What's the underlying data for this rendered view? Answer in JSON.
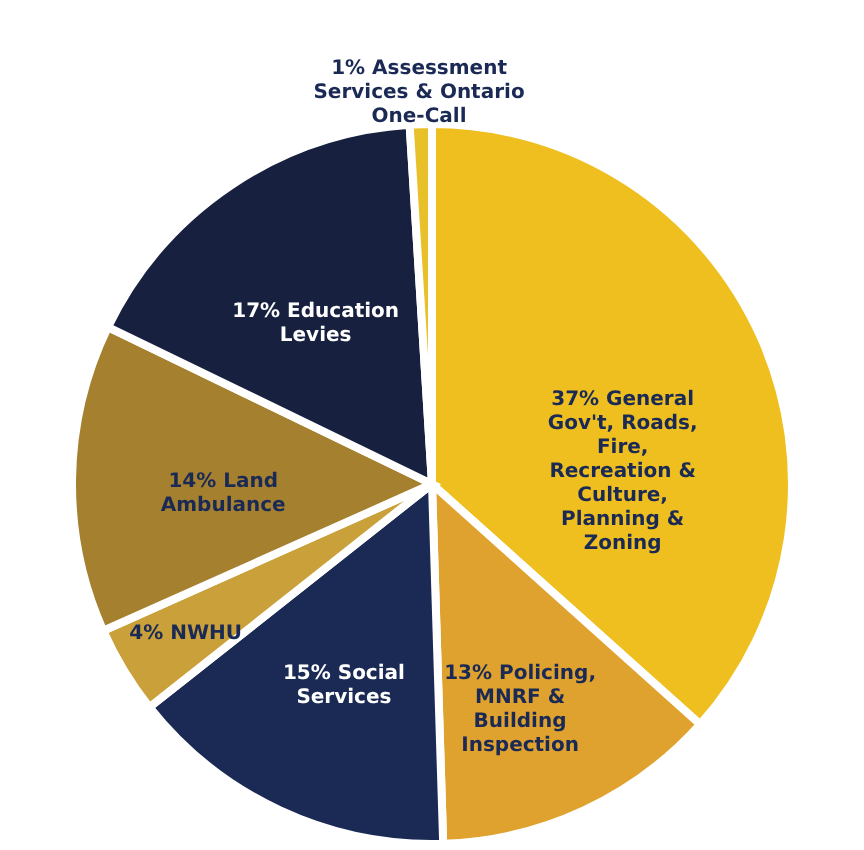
{
  "chart_data": {
    "type": "pie",
    "categories": [
      "General Gov't, Roads, Fire, Recreation & Culture, Planning & Zoning",
      "Policing, MNRF & Building Inspection",
      "Social Services",
      "NWHU",
      "Land Ambulance",
      "Education Levies",
      "Assessment Services & Ontario One-Call"
    ],
    "values": [
      37,
      13,
      15,
      4,
      14,
      17,
      1
    ],
    "value_labels": [
      "37%",
      "13%",
      "15%",
      "4%",
      "14%",
      "17%",
      "1%"
    ],
    "colors": [
      "#eebf1f",
      "#e0a22e",
      "#1a2a55",
      "#c9a03a",
      "#a5812f",
      "#17213f",
      "#e8c02a"
    ]
  }
}
